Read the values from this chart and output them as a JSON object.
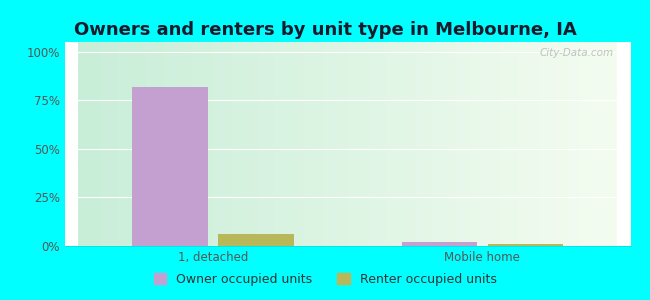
{
  "title": "Owners and renters by unit type in Melbourne, IA",
  "categories": [
    "1, detached",
    "Mobile home"
  ],
  "owner_values": [
    82,
    2
  ],
  "renter_values": [
    6,
    1
  ],
  "owner_color": "#c4a0d0",
  "renter_color": "#b8b85a",
  "background_outer": "#00ffff",
  "yticks": [
    0,
    25,
    50,
    75,
    100
  ],
  "ytick_labels": [
    "0%",
    "25%",
    "50%",
    "75%",
    "100%"
  ],
  "ylim": [
    0,
    105
  ],
  "bar_width": 0.28,
  "legend_labels": [
    "Owner occupied units",
    "Renter occupied units"
  ],
  "watermark": "City-Data.com",
  "title_fontsize": 13,
  "tick_fontsize": 8.5,
  "legend_fontsize": 9
}
